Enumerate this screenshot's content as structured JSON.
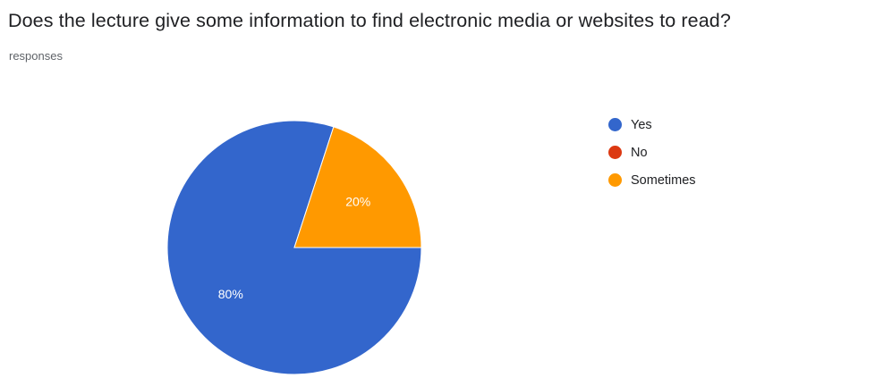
{
  "header": {
    "question": "Does the lecture give some information to find electronic media or websites to read?",
    "responses_label": "responses"
  },
  "chart_data": {
    "type": "pie",
    "title": "Does the lecture give some information to find electronic media or websites to read?",
    "categories": [
      "Yes",
      "No",
      "Sometimes"
    ],
    "values": [
      80,
      0,
      20
    ],
    "unit": "%",
    "colors": [
      "#3366cc",
      "#dc3912",
      "#ff9900"
    ],
    "data_labels": [
      "80%",
      "",
      "20%"
    ],
    "legend": {
      "position": "right",
      "entries": [
        "Yes",
        "No",
        "Sometimes"
      ]
    }
  }
}
